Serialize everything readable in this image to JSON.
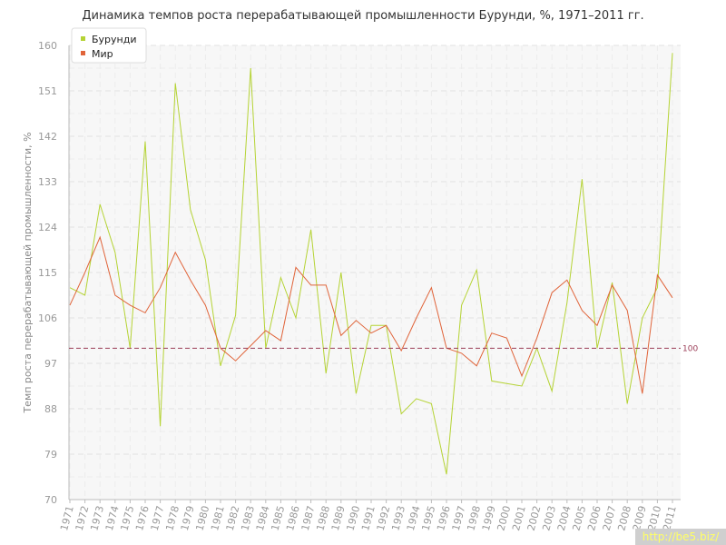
{
  "chart_data": {
    "type": "line",
    "title": "Динамика темпов роста перерабатывающей промышленности Бурунди, %, 1971–2011 гг.",
    "ylabel": "Темп роста перерабатывающей промышленности, %",
    "xlabel": "",
    "ylim": [
      70,
      160
    ],
    "yticks": [
      70,
      79,
      88,
      97,
      106,
      115,
      124,
      133,
      142,
      151,
      160
    ],
    "categories": [
      "1971",
      "1972",
      "1973",
      "1974",
      "1975",
      "1976",
      "1977",
      "1978",
      "1979",
      "1980",
      "1981",
      "1982",
      "1983",
      "1984",
      "1985",
      "1986",
      "1987",
      "1988",
      "1989",
      "1990",
      "1991",
      "1992",
      "1993",
      "1994",
      "1995",
      "1996",
      "1997",
      "1998",
      "1999",
      "2000",
      "2001",
      "2002",
      "2003",
      "2004",
      "2005",
      "2006",
      "2007",
      "2008",
      "2009",
      "2010",
      "2011"
    ],
    "series": [
      {
        "name": "Бурунди",
        "color": "#b5d334",
        "values": [
          112,
          110.5,
          128.5,
          119,
          100,
          141,
          84.5,
          152.5,
          127.5,
          117.5,
          96.5,
          106.5,
          155.5,
          100,
          114,
          106,
          123.5,
          95,
          115,
          91,
          104.5,
          104.5,
          87,
          90,
          89,
          75,
          108.5,
          115.5,
          93.5,
          93,
          92.5,
          100,
          91.5,
          109,
          133.5,
          100,
          113,
          89,
          106,
          112,
          158.5
        ]
      },
      {
        "name": "Мир",
        "color": "#e0643a",
        "values": [
          108.5,
          115,
          122,
          110.5,
          108.5,
          107,
          112,
          119,
          113.5,
          108.5,
          100,
          97.5,
          100.5,
          103.5,
          101.5,
          116,
          112.5,
          112.5,
          102.5,
          105.5,
          103,
          104.5,
          99.5,
          106,
          112,
          100,
          99,
          96.5,
          103,
          102,
          94.5,
          102,
          111,
          113.5,
          107.5,
          104.5,
          112.5,
          107.5,
          91,
          114.5,
          110
        ]
      }
    ],
    "reference_line": {
      "value": 100,
      "label": "100",
      "color": "#9b3d57"
    },
    "grid": true,
    "legend": "top-left"
  },
  "watermark": "http://be5.biz/"
}
